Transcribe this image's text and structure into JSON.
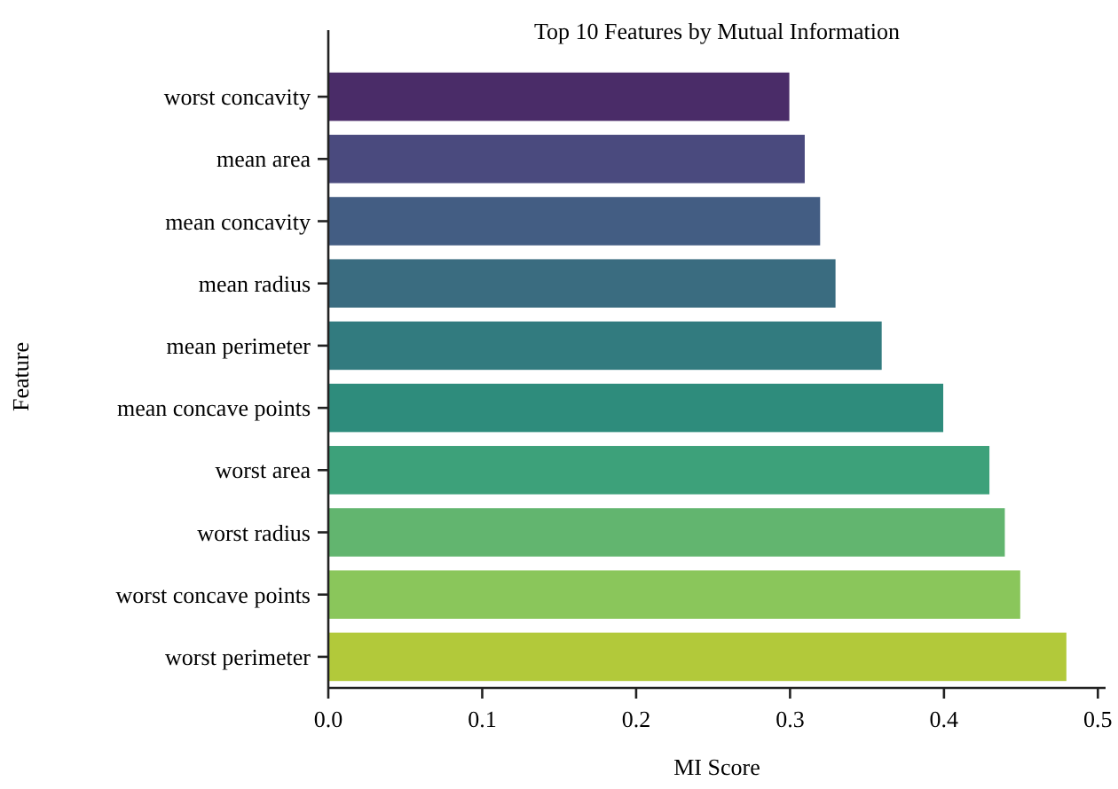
{
  "chart_data": {
    "type": "bar",
    "orientation": "horizontal",
    "title": "Top 10 Features by Mutual Information",
    "xlabel": "MI Score",
    "ylabel": "Feature",
    "categories": [
      "worst concavity",
      "mean area",
      "mean concavity",
      "mean radius",
      "mean perimeter",
      "mean concave points",
      "worst area",
      "worst radius",
      "worst concave points",
      "worst perimeter"
    ],
    "values": [
      0.3,
      0.31,
      0.32,
      0.33,
      0.36,
      0.4,
      0.43,
      0.44,
      0.45,
      0.48
    ],
    "colors": [
      "#4a2c68",
      "#4a4a7e",
      "#435d83",
      "#3a6c80",
      "#327b7f",
      "#2e8c7c",
      "#3da17a",
      "#62b56f",
      "#8ac65b",
      "#b2c93a"
    ],
    "xlim": [
      0,
      0.505
    ],
    "xticks": [
      {
        "value": 0,
        "label": "0.0"
      },
      0.1,
      0.2,
      0.3,
      0.4,
      0.5
    ],
    "grid": false
  }
}
